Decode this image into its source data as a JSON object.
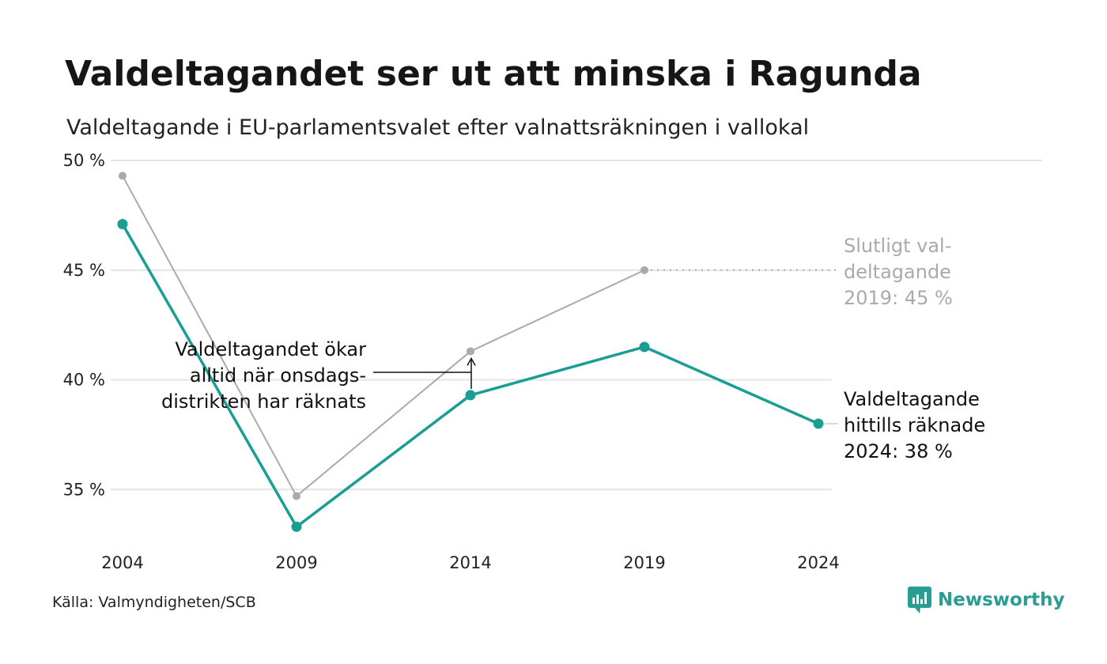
{
  "title": "Valdeltagandet ser ut att minska i Ragunda",
  "subtitle": "Valdeltagande i EU-parlamentsvalet efter valnattsräkningen i vallokal",
  "source": "Källa: Valmyndigheten/SCB",
  "brand": {
    "name": "Newsworthy",
    "icon": "newsworthy-logo-icon",
    "color": "#2a9d93"
  },
  "chart_data": {
    "type": "line",
    "x": [
      "2004",
      "2009",
      "2014",
      "2019",
      "2024"
    ],
    "ylim": [
      32.5,
      50
    ],
    "yticks": [
      35,
      40,
      45,
      50
    ],
    "ytick_labels": [
      "35 %",
      "40 %",
      "45 %",
      "50 %"
    ],
    "grid": true,
    "series": [
      {
        "key": "final",
        "color": "#aaaaaa",
        "values": [
          49.3,
          34.7,
          41.3,
          45.0,
          null
        ]
      },
      {
        "key": "counted",
        "color": "#1a9e93",
        "values": [
          47.1,
          33.3,
          39.3,
          41.5,
          38.0
        ]
      }
    ],
    "annotations": {
      "final_2019": [
        "Slutligt val-",
        "deltagande",
        "2019: 45 %"
      ],
      "counted_2024": [
        "Valdeltagande",
        "hittills räknade",
        "2024: 38 %"
      ],
      "note_2014": [
        "Valdeltagandet ökar",
        "alltid när onsdags-",
        "distrikten har räknats"
      ]
    }
  }
}
